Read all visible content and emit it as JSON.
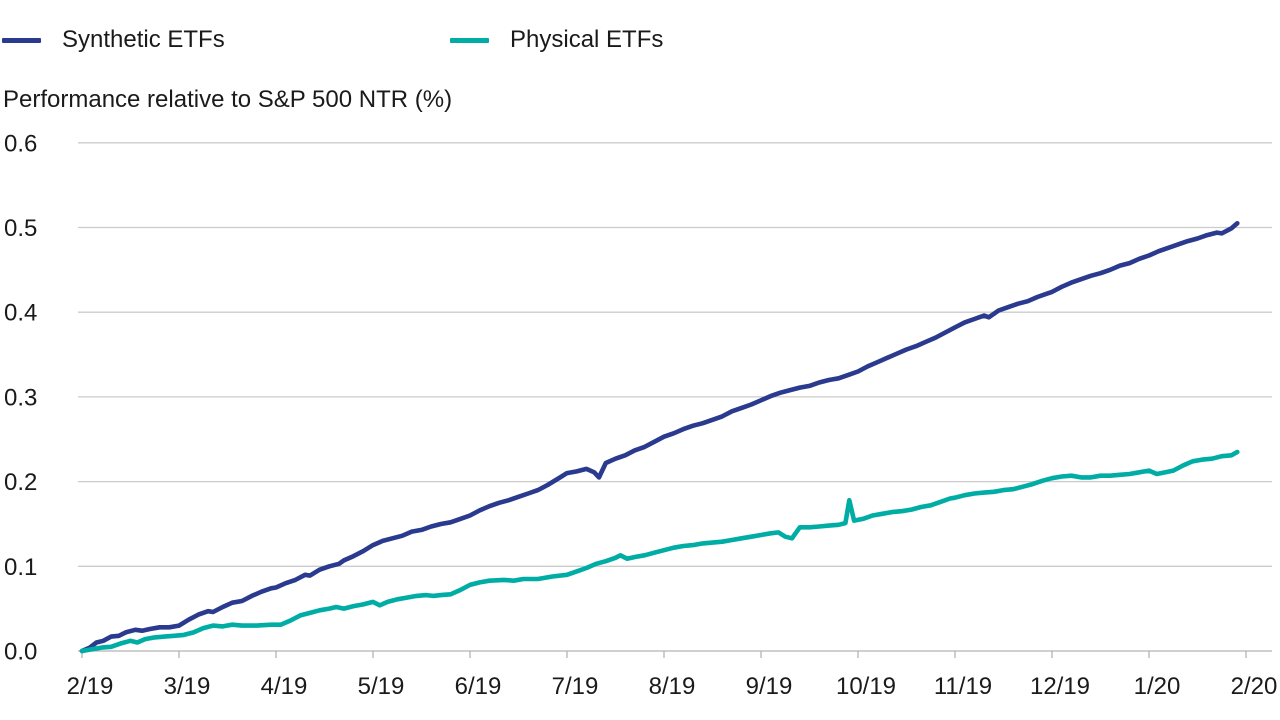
{
  "chart_data": {
    "type": "line",
    "title": "Performance relative to S&P 500 NTR (%)",
    "x_tick_labels": [
      "2/19",
      "3/19",
      "4/19",
      "5/19",
      "6/19",
      "7/19",
      "8/19",
      "9/19",
      "10/19",
      "11/19",
      "12/19",
      "1/20",
      "2/20"
    ],
    "y_tick_labels": [
      "0.0",
      "0.1",
      "0.2",
      "0.3",
      "0.4",
      "0.5",
      "0.6"
    ],
    "ylim": [
      0.0,
      0.6
    ],
    "y_step": 0.1,
    "xlim_months": [
      0,
      12
    ],
    "grid": "horizontal",
    "legend_position": "top",
    "axis_color": "#b3b3b3",
    "grid_color": "#cccccc",
    "text_color": "#1a1a1a",
    "series": [
      {
        "name": "Synthetic ETFs",
        "color": "#2a3a8e",
        "points": [
          [
            0.0,
            0.0
          ],
          [
            0.08,
            0.004
          ],
          [
            0.15,
            0.01
          ],
          [
            0.22,
            0.012
          ],
          [
            0.3,
            0.017
          ],
          [
            0.38,
            0.018
          ],
          [
            0.45,
            0.022
          ],
          [
            0.55,
            0.025
          ],
          [
            0.62,
            0.024
          ],
          [
            0.7,
            0.026
          ],
          [
            0.8,
            0.028
          ],
          [
            0.9,
            0.028
          ],
          [
            1.0,
            0.03
          ],
          [
            1.1,
            0.037
          ],
          [
            1.2,
            0.043
          ],
          [
            1.3,
            0.047
          ],
          [
            1.35,
            0.046
          ],
          [
            1.45,
            0.052
          ],
          [
            1.55,
            0.057
          ],
          [
            1.65,
            0.059
          ],
          [
            1.75,
            0.065
          ],
          [
            1.85,
            0.07
          ],
          [
            1.95,
            0.074
          ],
          [
            2.0,
            0.075
          ],
          [
            2.1,
            0.08
          ],
          [
            2.2,
            0.084
          ],
          [
            2.3,
            0.09
          ],
          [
            2.35,
            0.089
          ],
          [
            2.45,
            0.096
          ],
          [
            2.55,
            0.1
          ],
          [
            2.65,
            0.103
          ],
          [
            2.7,
            0.107
          ],
          [
            2.8,
            0.112
          ],
          [
            2.9,
            0.118
          ],
          [
            3.0,
            0.125
          ],
          [
            3.1,
            0.13
          ],
          [
            3.2,
            0.133
          ],
          [
            3.3,
            0.136
          ],
          [
            3.4,
            0.141
          ],
          [
            3.5,
            0.143
          ],
          [
            3.6,
            0.147
          ],
          [
            3.7,
            0.15
          ],
          [
            3.8,
            0.152
          ],
          [
            3.9,
            0.156
          ],
          [
            4.0,
            0.16
          ],
          [
            4.1,
            0.166
          ],
          [
            4.2,
            0.171
          ],
          [
            4.3,
            0.175
          ],
          [
            4.4,
            0.178
          ],
          [
            4.5,
            0.182
          ],
          [
            4.6,
            0.186
          ],
          [
            4.7,
            0.19
          ],
          [
            4.8,
            0.196
          ],
          [
            4.9,
            0.203
          ],
          [
            5.0,
            0.21
          ],
          [
            5.1,
            0.212
          ],
          [
            5.2,
            0.215
          ],
          [
            5.28,
            0.211
          ],
          [
            5.33,
            0.205
          ],
          [
            5.4,
            0.222
          ],
          [
            5.5,
            0.227
          ],
          [
            5.6,
            0.231
          ],
          [
            5.7,
            0.237
          ],
          [
            5.8,
            0.241
          ],
          [
            5.9,
            0.247
          ],
          [
            6.0,
            0.253
          ],
          [
            6.1,
            0.257
          ],
          [
            6.2,
            0.262
          ],
          [
            6.3,
            0.266
          ],
          [
            6.4,
            0.269
          ],
          [
            6.5,
            0.273
          ],
          [
            6.6,
            0.277
          ],
          [
            6.7,
            0.283
          ],
          [
            6.8,
            0.287
          ],
          [
            6.9,
            0.291
          ],
          [
            7.0,
            0.296
          ],
          [
            7.1,
            0.301
          ],
          [
            7.2,
            0.305
          ],
          [
            7.3,
            0.308
          ],
          [
            7.4,
            0.311
          ],
          [
            7.5,
            0.313
          ],
          [
            7.6,
            0.317
          ],
          [
            7.7,
            0.32
          ],
          [
            7.8,
            0.322
          ],
          [
            7.9,
            0.326
          ],
          [
            8.0,
            0.33
          ],
          [
            8.1,
            0.336
          ],
          [
            8.2,
            0.341
          ],
          [
            8.3,
            0.346
          ],
          [
            8.4,
            0.351
          ],
          [
            8.5,
            0.356
          ],
          [
            8.6,
            0.36
          ],
          [
            8.7,
            0.365
          ],
          [
            8.8,
            0.37
          ],
          [
            8.9,
            0.376
          ],
          [
            9.0,
            0.382
          ],
          [
            9.1,
            0.388
          ],
          [
            9.2,
            0.392
          ],
          [
            9.3,
            0.396
          ],
          [
            9.35,
            0.394
          ],
          [
            9.45,
            0.402
          ],
          [
            9.55,
            0.406
          ],
          [
            9.65,
            0.41
          ],
          [
            9.75,
            0.413
          ],
          [
            9.85,
            0.418
          ],
          [
            9.95,
            0.422
          ],
          [
            10.0,
            0.424
          ],
          [
            10.1,
            0.43
          ],
          [
            10.2,
            0.435
          ],
          [
            10.3,
            0.439
          ],
          [
            10.4,
            0.443
          ],
          [
            10.5,
            0.446
          ],
          [
            10.6,
            0.45
          ],
          [
            10.7,
            0.455
          ],
          [
            10.8,
            0.458
          ],
          [
            10.9,
            0.463
          ],
          [
            11.0,
            0.467
          ],
          [
            11.1,
            0.472
          ],
          [
            11.2,
            0.476
          ],
          [
            11.3,
            0.48
          ],
          [
            11.4,
            0.484
          ],
          [
            11.5,
            0.487
          ],
          [
            11.6,
            0.491
          ],
          [
            11.7,
            0.494
          ],
          [
            11.75,
            0.493
          ],
          [
            11.85,
            0.499
          ],
          [
            11.91,
            0.505
          ]
        ]
      },
      {
        "name": "Physical ETFs",
        "color": "#00ada4",
        "points": [
          [
            0.0,
            0.0
          ],
          [
            0.1,
            0.002
          ],
          [
            0.2,
            0.004
          ],
          [
            0.3,
            0.005
          ],
          [
            0.4,
            0.009
          ],
          [
            0.5,
            0.012
          ],
          [
            0.57,
            0.01
          ],
          [
            0.65,
            0.014
          ],
          [
            0.75,
            0.016
          ],
          [
            0.85,
            0.017
          ],
          [
            0.95,
            0.018
          ],
          [
            1.05,
            0.019
          ],
          [
            1.15,
            0.022
          ],
          [
            1.25,
            0.027
          ],
          [
            1.35,
            0.03
          ],
          [
            1.45,
            0.029
          ],
          [
            1.55,
            0.031
          ],
          [
            1.65,
            0.03
          ],
          [
            1.8,
            0.03
          ],
          [
            1.95,
            0.031
          ],
          [
            2.05,
            0.031
          ],
          [
            2.15,
            0.036
          ],
          [
            2.25,
            0.042
          ],
          [
            2.35,
            0.045
          ],
          [
            2.45,
            0.048
          ],
          [
            2.55,
            0.05
          ],
          [
            2.62,
            0.052
          ],
          [
            2.7,
            0.05
          ],
          [
            2.8,
            0.053
          ],
          [
            2.9,
            0.055
          ],
          [
            3.0,
            0.058
          ],
          [
            3.07,
            0.054
          ],
          [
            3.15,
            0.058
          ],
          [
            3.25,
            0.061
          ],
          [
            3.35,
            0.063
          ],
          [
            3.45,
            0.065
          ],
          [
            3.55,
            0.066
          ],
          [
            3.62,
            0.065
          ],
          [
            3.7,
            0.066
          ],
          [
            3.8,
            0.067
          ],
          [
            3.9,
            0.072
          ],
          [
            4.0,
            0.078
          ],
          [
            4.1,
            0.081
          ],
          [
            4.2,
            0.083
          ],
          [
            4.35,
            0.084
          ],
          [
            4.45,
            0.083
          ],
          [
            4.55,
            0.085
          ],
          [
            4.7,
            0.085
          ],
          [
            4.85,
            0.088
          ],
          [
            5.0,
            0.09
          ],
          [
            5.1,
            0.094
          ],
          [
            5.2,
            0.098
          ],
          [
            5.3,
            0.103
          ],
          [
            5.4,
            0.106
          ],
          [
            5.5,
            0.11
          ],
          [
            5.55,
            0.113
          ],
          [
            5.62,
            0.109
          ],
          [
            5.7,
            0.111
          ],
          [
            5.8,
            0.113
          ],
          [
            5.9,
            0.116
          ],
          [
            6.0,
            0.119
          ],
          [
            6.1,
            0.122
          ],
          [
            6.2,
            0.124
          ],
          [
            6.3,
            0.125
          ],
          [
            6.4,
            0.127
          ],
          [
            6.5,
            0.128
          ],
          [
            6.6,
            0.129
          ],
          [
            6.7,
            0.131
          ],
          [
            6.8,
            0.133
          ],
          [
            6.9,
            0.135
          ],
          [
            7.0,
            0.137
          ],
          [
            7.1,
            0.139
          ],
          [
            7.18,
            0.14
          ],
          [
            7.25,
            0.135
          ],
          [
            7.32,
            0.133
          ],
          [
            7.4,
            0.146
          ],
          [
            7.5,
            0.146
          ],
          [
            7.6,
            0.147
          ],
          [
            7.7,
            0.148
          ],
          [
            7.8,
            0.149
          ],
          [
            7.87,
            0.151
          ],
          [
            7.91,
            0.178
          ],
          [
            7.96,
            0.154
          ],
          [
            8.05,
            0.156
          ],
          [
            8.15,
            0.16
          ],
          [
            8.25,
            0.162
          ],
          [
            8.35,
            0.164
          ],
          [
            8.45,
            0.165
          ],
          [
            8.55,
            0.167
          ],
          [
            8.65,
            0.17
          ],
          [
            8.75,
            0.172
          ],
          [
            8.85,
            0.176
          ],
          [
            8.95,
            0.18
          ],
          [
            9.0,
            0.181
          ],
          [
            9.1,
            0.184
          ],
          [
            9.2,
            0.186
          ],
          [
            9.3,
            0.187
          ],
          [
            9.4,
            0.188
          ],
          [
            9.5,
            0.19
          ],
          [
            9.6,
            0.191
          ],
          [
            9.7,
            0.194
          ],
          [
            9.8,
            0.197
          ],
          [
            9.9,
            0.201
          ],
          [
            10.0,
            0.204
          ],
          [
            10.1,
            0.206
          ],
          [
            10.2,
            0.207
          ],
          [
            10.3,
            0.205
          ],
          [
            10.4,
            0.205
          ],
          [
            10.5,
            0.207
          ],
          [
            10.6,
            0.207
          ],
          [
            10.7,
            0.208
          ],
          [
            10.8,
            0.209
          ],
          [
            10.9,
            0.211
          ],
          [
            11.0,
            0.213
          ],
          [
            11.08,
            0.209
          ],
          [
            11.17,
            0.211
          ],
          [
            11.25,
            0.213
          ],
          [
            11.35,
            0.219
          ],
          [
            11.45,
            0.224
          ],
          [
            11.55,
            0.226
          ],
          [
            11.65,
            0.227
          ],
          [
            11.75,
            0.23
          ],
          [
            11.85,
            0.231
          ],
          [
            11.91,
            0.235
          ]
        ]
      }
    ]
  }
}
